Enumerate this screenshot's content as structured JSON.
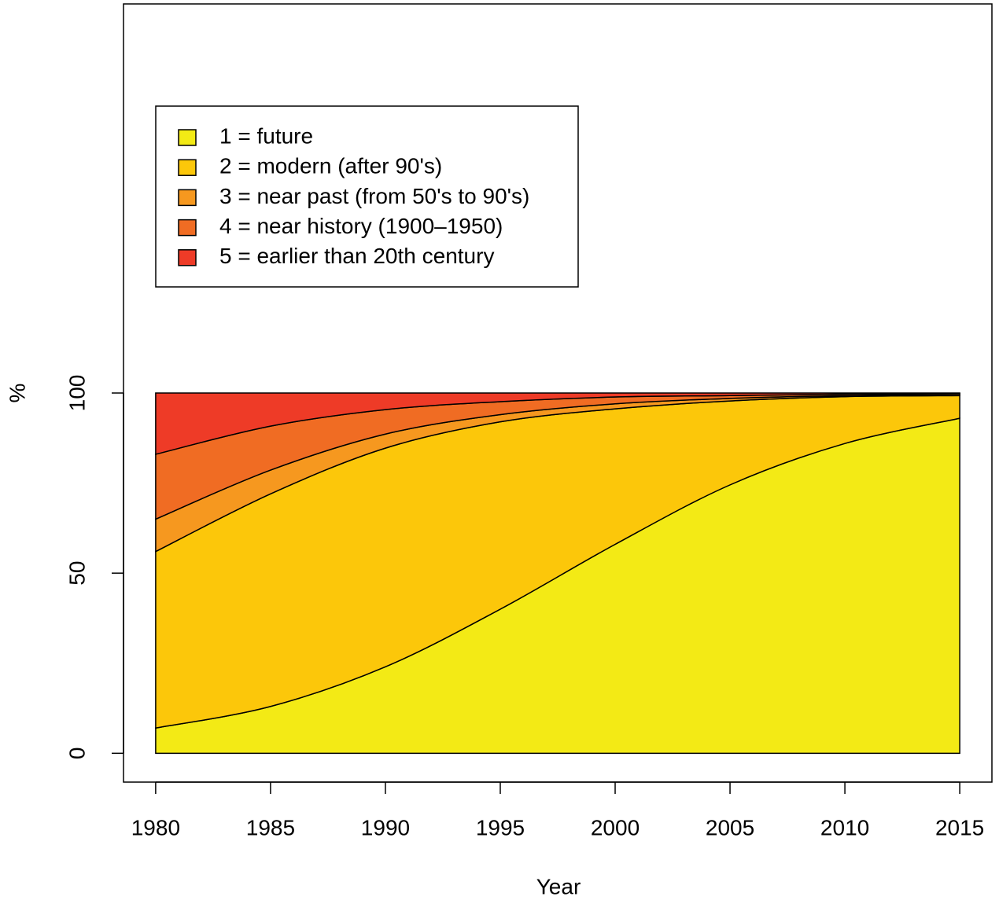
{
  "chart_data": {
    "type": "stacked_area",
    "xlabel": "Year",
    "ylabel": "%",
    "x": [
      1980,
      1985,
      1990,
      1995,
      2000,
      2005,
      2010,
      2015
    ],
    "series": [
      {
        "name": "1 = future",
        "color": "#F3EA15",
        "values": [
          7,
          13,
          24,
          40,
          58,
          74.5,
          86,
          93
        ]
      },
      {
        "name": "2 = modern (after 90's)",
        "color": "#FCC70A",
        "values": [
          49,
          59,
          60.7,
          52,
          37.6,
          23.3,
          13,
          6.3
        ]
      },
      {
        "name": "3 = near past (from 50's to 90's)",
        "color": "#F6981F",
        "values": [
          9,
          6.6,
          3.9,
          2,
          1.4,
          0.7,
          0.3,
          0.4
        ]
      },
      {
        "name": "4 = near history (1900–1950)",
        "color": "#F06C23",
        "values": [
          18,
          12.2,
          6.8,
          3.6,
          1.9,
          0.8,
          0.4,
          0.2
        ]
      },
      {
        "name": "5 = earlier than 20th century",
        "color": "#EE3B27",
        "values": [
          17,
          9.2,
          4.6,
          2.4,
          1.1,
          0.7,
          0.3,
          0.1
        ]
      }
    ],
    "xlim": [
      1978.6,
      2016.4
    ],
    "ylim": [
      -8,
      208
    ],
    "xticks": [
      1980,
      1985,
      1990,
      1995,
      2000,
      2005,
      2010,
      2015
    ],
    "yticks": [
      0,
      50,
      100
    ],
    "legend": "topleft"
  }
}
